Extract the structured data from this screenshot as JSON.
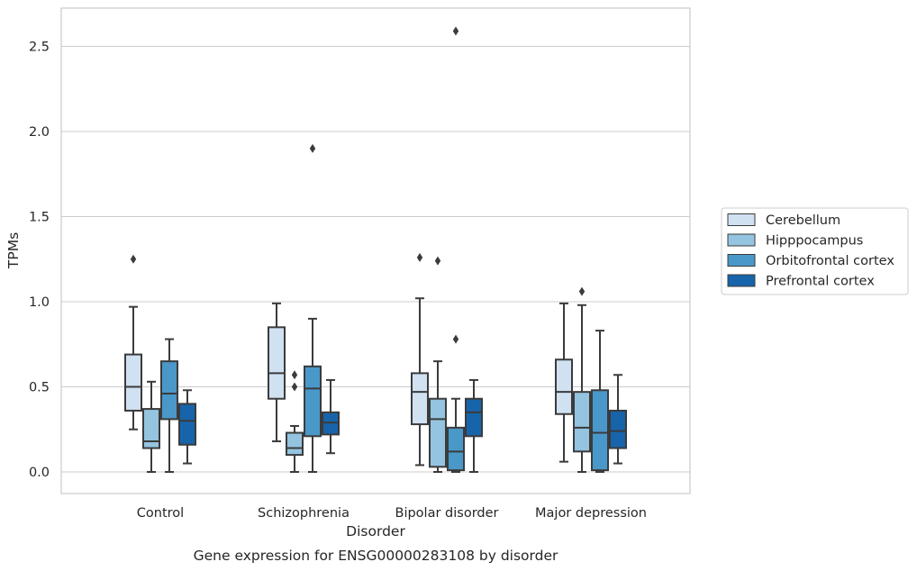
{
  "chart_data": {
    "type": "box",
    "caption": "Gene expression for ENSG00000283108 by disorder",
    "xlabel": "Disorder",
    "ylabel": "TPMs",
    "ylim": [
      -0.12,
      2.72
    ],
    "yticks": [
      0.0,
      0.5,
      1.0,
      1.5,
      2.0,
      2.5
    ],
    "ytick_labels": [
      "0.0",
      "0.5",
      "1.0",
      "1.5",
      "2.0",
      "2.5"
    ],
    "grid": "horizontal",
    "legend_position": "right",
    "categories": [
      "Control",
      "Schizophrenia",
      "Bipolar disorder",
      "Major depression"
    ],
    "series": [
      {
        "name": "Cerebellum",
        "color": "#d0e1f2",
        "boxes": [
          {
            "whislo": 0.25,
            "q1": 0.36,
            "med": 0.5,
            "q3": 0.69,
            "whishi": 0.97,
            "fliers": [
              1.25
            ]
          },
          {
            "whislo": 0.18,
            "q1": 0.43,
            "med": 0.58,
            "q3": 0.85,
            "whishi": 0.99,
            "fliers": []
          },
          {
            "whislo": 0.04,
            "q1": 0.28,
            "med": 0.47,
            "q3": 0.58,
            "whishi": 1.02,
            "fliers": [
              1.26
            ]
          },
          {
            "whislo": 0.06,
            "q1": 0.34,
            "med": 0.47,
            "q3": 0.66,
            "whishi": 0.99,
            "fliers": []
          }
        ]
      },
      {
        "name": "Hipppocampus",
        "color": "#94c4df",
        "boxes": [
          {
            "whislo": 0.0,
            "q1": 0.14,
            "med": 0.18,
            "q3": 0.37,
            "whishi": 0.53,
            "fliers": []
          },
          {
            "whislo": 0.0,
            "q1": 0.1,
            "med": 0.14,
            "q3": 0.23,
            "whishi": 0.27,
            "fliers": [
              0.5,
              0.57
            ]
          },
          {
            "whislo": 0.0,
            "q1": 0.03,
            "med": 0.31,
            "q3": 0.43,
            "whishi": 0.65,
            "fliers": [
              1.24
            ]
          },
          {
            "whislo": 0.0,
            "q1": 0.12,
            "med": 0.26,
            "q3": 0.47,
            "whishi": 0.98,
            "fliers": [
              1.06
            ]
          }
        ]
      },
      {
        "name": "Orbitofrontal cortex",
        "color": "#4a98c9",
        "boxes": [
          {
            "whislo": 0.0,
            "q1": 0.31,
            "med": 0.46,
            "q3": 0.65,
            "whishi": 0.78,
            "fliers": []
          },
          {
            "whislo": 0.0,
            "q1": 0.21,
            "med": 0.49,
            "q3": 0.62,
            "whishi": 0.9,
            "fliers": [
              1.9
            ]
          },
          {
            "whislo": 0.0,
            "q1": 0.01,
            "med": 0.12,
            "q3": 0.26,
            "whishi": 0.43,
            "fliers": [
              0.78,
              2.59
            ]
          },
          {
            "whislo": 0.0,
            "q1": 0.01,
            "med": 0.23,
            "q3": 0.48,
            "whishi": 0.83,
            "fliers": []
          }
        ]
      },
      {
        "name": "Prefrontal cortex",
        "color": "#1764ab",
        "boxes": [
          {
            "whislo": 0.05,
            "q1": 0.16,
            "med": 0.3,
            "q3": 0.4,
            "whishi": 0.48,
            "fliers": []
          },
          {
            "whislo": 0.11,
            "q1": 0.22,
            "med": 0.29,
            "q3": 0.35,
            "whishi": 0.54,
            "fliers": []
          },
          {
            "whislo": 0.0,
            "q1": 0.21,
            "med": 0.35,
            "q3": 0.43,
            "whishi": 0.54,
            "fliers": []
          },
          {
            "whislo": 0.05,
            "q1": 0.14,
            "med": 0.24,
            "q3": 0.36,
            "whishi": 0.57,
            "fliers": []
          }
        ]
      }
    ]
  }
}
